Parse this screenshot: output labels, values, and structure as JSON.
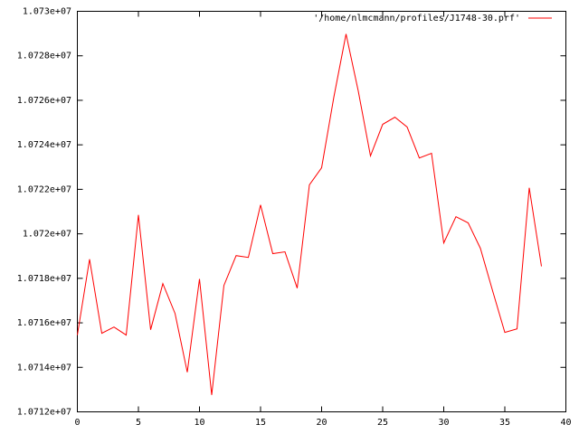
{
  "chart_data": {
    "type": "line",
    "x": [
      0,
      1,
      2,
      3,
      4,
      5,
      6,
      7,
      8,
      9,
      10,
      11,
      12,
      13,
      14,
      15,
      16,
      17,
      18,
      19,
      20,
      21,
      22,
      23,
      24,
      25,
      26,
      27,
      28,
      29,
      30,
      31,
      32,
      33,
      34,
      35,
      36,
      37,
      38
    ],
    "series": [
      {
        "name": "'/home/nlmcmann/profiles/J1748-30.prf'",
        "color": "#ff0000",
        "values": [
          10715450,
          10718860,
          10715530,
          10715810,
          10715450,
          10720850,
          10715690,
          10717760,
          10716420,
          10713780,
          10717970,
          10712760,
          10717680,
          10719020,
          10718940,
          10721300,
          10719110,
          10719190,
          10717560,
          10722200,
          10722970,
          10726140,
          10728980,
          10726420,
          10723500,
          10724920,
          10725240,
          10724800,
          10723410,
          10723620,
          10719590,
          10720770,
          10720490,
          10719350,
          10717440,
          10715570,
          10715730,
          10722070,
          10718540
        ]
      }
    ],
    "xlim": [
      0,
      40
    ],
    "xticks": [
      0,
      5,
      10,
      15,
      20,
      25,
      30,
      35,
      40
    ],
    "ylim": [
      10712000,
      10730000
    ],
    "yticks": [
      {
        "value": 10712000,
        "label": "1.0712e+07"
      },
      {
        "value": 10714000,
        "label": "1.0714e+07"
      },
      {
        "value": 10716000,
        "label": "1.0716e+07"
      },
      {
        "value": 10718000,
        "label": "1.0718e+07"
      },
      {
        "value": 10720000,
        "label": "1.072e+07"
      },
      {
        "value": 10722000,
        "label": "1.0722e+07"
      },
      {
        "value": 10724000,
        "label": "1.0724e+07"
      },
      {
        "value": 10726000,
        "label": "1.0726e+07"
      },
      {
        "value": 10728000,
        "label": "1.0728e+07"
      },
      {
        "value": 10730000,
        "label": "1.073e+07"
      }
    ],
    "grid": false,
    "legend": "top-right"
  }
}
